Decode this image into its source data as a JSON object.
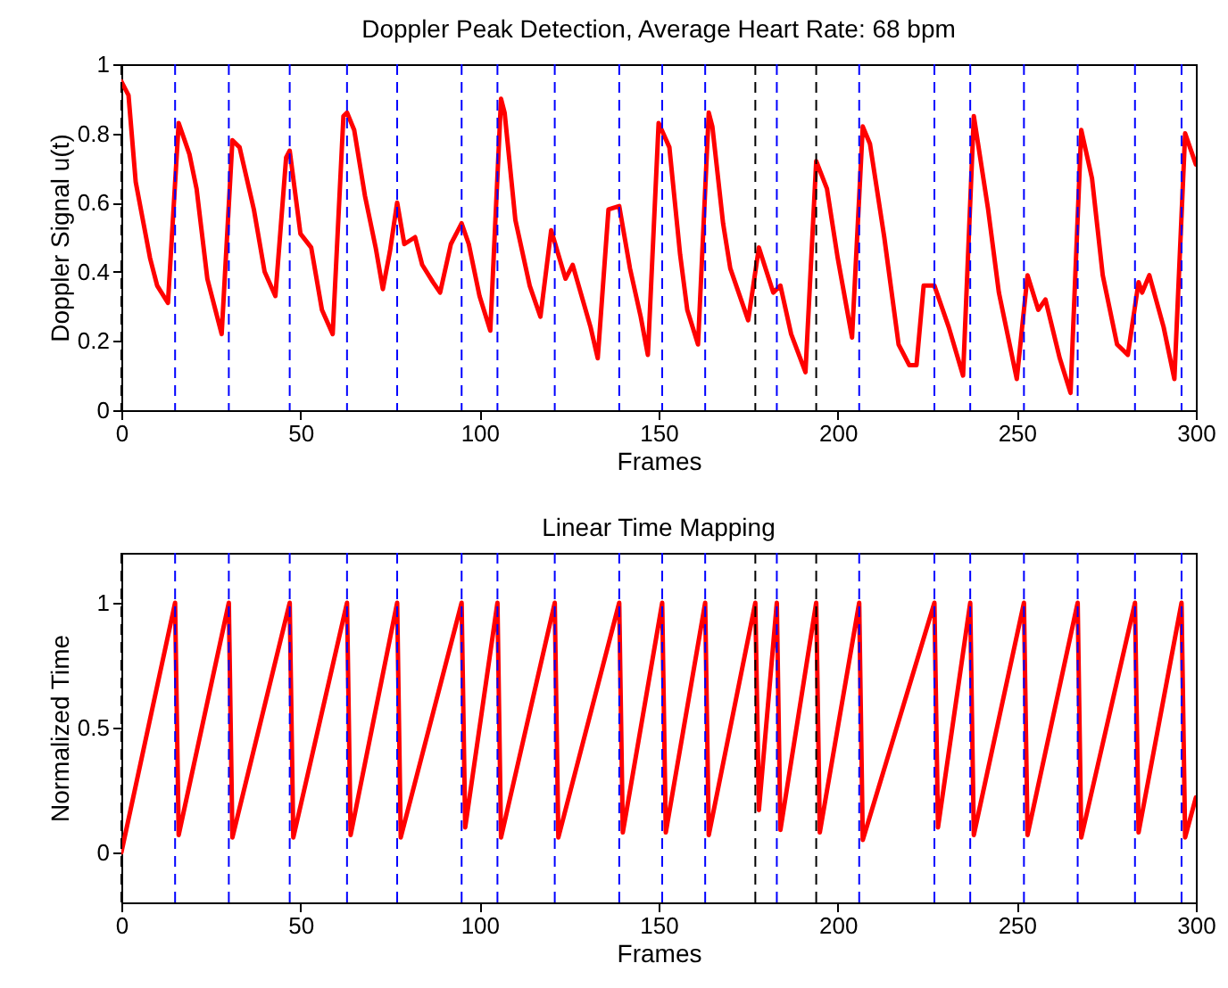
{
  "chart_data": [
    {
      "type": "line",
      "title": "Doppler Peak Detection, Average Heart Rate: 68 bpm",
      "xlabel": "Frames",
      "ylabel": "Doppler Signal u(t)",
      "color": "#ff0000",
      "x": [
        0,
        2,
        4,
        8,
        10,
        13,
        16,
        19,
        21,
        24,
        28,
        31,
        33,
        37,
        40,
        43,
        46,
        47,
        50,
        53,
        56,
        59,
        62,
        63,
        65,
        68,
        71,
        73,
        75,
        77,
        79,
        82,
        84,
        87,
        89,
        92,
        95,
        97,
        100,
        103,
        106,
        107,
        110,
        114,
        117,
        120,
        124,
        126,
        131,
        133,
        136,
        139,
        142,
        145,
        147,
        150,
        153,
        156,
        158,
        161,
        164,
        165,
        168,
        170,
        175,
        178,
        182,
        184,
        187,
        191,
        194,
        197,
        200,
        204,
        207,
        209,
        213,
        217,
        220,
        222,
        224,
        227,
        231,
        235,
        238,
        242,
        245,
        250,
        253,
        256,
        258,
        262,
        265,
        268,
        271,
        274,
        278,
        281,
        284,
        285,
        287,
        291,
        294,
        297,
        300
      ],
      "values": [
        0.95,
        0.91,
        0.66,
        0.44,
        0.36,
        0.31,
        0.83,
        0.74,
        0.64,
        0.38,
        0.22,
        0.78,
        0.76,
        0.58,
        0.4,
        0.33,
        0.73,
        0.75,
        0.51,
        0.47,
        0.29,
        0.22,
        0.85,
        0.86,
        0.81,
        0.62,
        0.47,
        0.35,
        0.46,
        0.6,
        0.48,
        0.5,
        0.42,
        0.37,
        0.34,
        0.48,
        0.54,
        0.48,
        0.33,
        0.23,
        0.9,
        0.86,
        0.55,
        0.36,
        0.27,
        0.52,
        0.38,
        0.42,
        0.24,
        0.15,
        0.58,
        0.59,
        0.41,
        0.27,
        0.16,
        0.83,
        0.76,
        0.45,
        0.29,
        0.19,
        0.86,
        0.82,
        0.54,
        0.41,
        0.26,
        0.47,
        0.34,
        0.36,
        0.22,
        0.11,
        0.72,
        0.64,
        0.44,
        0.21,
        0.82,
        0.77,
        0.5,
        0.19,
        0.13,
        0.13,
        0.36,
        0.36,
        0.24,
        0.1,
        0.85,
        0.58,
        0.34,
        0.09,
        0.39,
        0.29,
        0.32,
        0.15,
        0.05,
        0.81,
        0.67,
        0.39,
        0.19,
        0.16,
        0.37,
        0.34,
        0.39,
        0.24,
        0.09,
        0.8,
        0.71
      ],
      "xlim": [
        0,
        300
      ],
      "xticks": [
        0,
        50,
        100,
        150,
        200,
        250,
        300
      ],
      "ylim": [
        0,
        1
      ],
      "yticks": [
        0,
        0.2,
        0.4,
        0.6,
        0.8,
        1
      ],
      "ref_lines": [
        {
          "axis": "x",
          "value": 0,
          "color": "#000000",
          "line_style": "dashed"
        },
        {
          "axis": "x",
          "value": 15,
          "color": "#0000ff",
          "line_style": "dashed"
        },
        {
          "axis": "x",
          "value": 30,
          "color": "#0000ff",
          "line_style": "dashed"
        },
        {
          "axis": "x",
          "value": 47,
          "color": "#0000ff",
          "line_style": "dashed"
        },
        {
          "axis": "x",
          "value": 63,
          "color": "#0000ff",
          "line_style": "dashed"
        },
        {
          "axis": "x",
          "value": 77,
          "color": "#0000ff",
          "line_style": "dashed"
        },
        {
          "axis": "x",
          "value": 95,
          "color": "#0000ff",
          "line_style": "dashed"
        },
        {
          "axis": "x",
          "value": 105,
          "color": "#0000ff",
          "line_style": "dashed"
        },
        {
          "axis": "x",
          "value": 121,
          "color": "#0000ff",
          "line_style": "dashed"
        },
        {
          "axis": "x",
          "value": 139,
          "color": "#0000ff",
          "line_style": "dashed"
        },
        {
          "axis": "x",
          "value": 151,
          "color": "#0000ff",
          "line_style": "dashed"
        },
        {
          "axis": "x",
          "value": 163,
          "color": "#0000ff",
          "line_style": "dashed"
        },
        {
          "axis": "x",
          "value": 177,
          "color": "#000000",
          "line_style": "dashed"
        },
        {
          "axis": "x",
          "value": 183,
          "color": "#0000ff",
          "line_style": "dashed"
        },
        {
          "axis": "x",
          "value": 194,
          "color": "#000000",
          "line_style": "dashed"
        },
        {
          "axis": "x",
          "value": 206,
          "color": "#0000ff",
          "line_style": "dashed"
        },
        {
          "axis": "x",
          "value": 227,
          "color": "#0000ff",
          "line_style": "dashed"
        },
        {
          "axis": "x",
          "value": 237,
          "color": "#0000ff",
          "line_style": "dashed"
        },
        {
          "axis": "x",
          "value": 252,
          "color": "#0000ff",
          "line_style": "dashed"
        },
        {
          "axis": "x",
          "value": 267,
          "color": "#0000ff",
          "line_style": "dashed"
        },
        {
          "axis": "x",
          "value": 283,
          "color": "#0000ff",
          "line_style": "dashed"
        },
        {
          "axis": "x",
          "value": 296,
          "color": "#0000ff",
          "line_style": "dashed"
        }
      ]
    },
    {
      "type": "line",
      "title": "Linear Time Mapping",
      "xlabel": "Frames",
      "ylabel": "Normalized Time",
      "color": "#ff0000",
      "x": [
        0,
        15,
        16,
        30,
        31,
        47,
        48,
        63,
        64,
        77,
        78,
        95,
        96,
        105,
        106,
        121,
        122,
        139,
        140,
        151,
        152,
        163,
        164,
        177,
        178,
        183,
        184,
        194,
        195,
        206,
        207,
        227,
        228,
        237,
        238,
        252,
        253,
        267,
        268,
        283,
        284,
        296,
        297,
        300
      ],
      "values": [
        0,
        1,
        0.07,
        1,
        0.06,
        1,
        0.06,
        1,
        0.07,
        1,
        0.06,
        1,
        0.1,
        1,
        0.06,
        1,
        0.06,
        1,
        0.08,
        1,
        0.08,
        1,
        0.07,
        1,
        0.17,
        1,
        0.09,
        1,
        0.08,
        1,
        0.05,
        1,
        0.1,
        1,
        0.07,
        1,
        0.07,
        1,
        0.06,
        1,
        0.08,
        1,
        0.06,
        0.22
      ],
      "xlim": [
        0,
        300
      ],
      "xticks": [
        0,
        50,
        100,
        150,
        200,
        250,
        300
      ],
      "ylim": [
        -0.2,
        1.2
      ],
      "yticks": [
        0,
        0.5,
        1
      ],
      "ref_lines": [
        {
          "axis": "x",
          "value": 0,
          "color": "#000000",
          "line_style": "dashed"
        },
        {
          "axis": "x",
          "value": 15,
          "color": "#0000ff",
          "line_style": "dashed"
        },
        {
          "axis": "x",
          "value": 30,
          "color": "#0000ff",
          "line_style": "dashed"
        },
        {
          "axis": "x",
          "value": 47,
          "color": "#0000ff",
          "line_style": "dashed"
        },
        {
          "axis": "x",
          "value": 63,
          "color": "#0000ff",
          "line_style": "dashed"
        },
        {
          "axis": "x",
          "value": 77,
          "color": "#0000ff",
          "line_style": "dashed"
        },
        {
          "axis": "x",
          "value": 95,
          "color": "#0000ff",
          "line_style": "dashed"
        },
        {
          "axis": "x",
          "value": 105,
          "color": "#0000ff",
          "line_style": "dashed"
        },
        {
          "axis": "x",
          "value": 121,
          "color": "#0000ff",
          "line_style": "dashed"
        },
        {
          "axis": "x",
          "value": 139,
          "color": "#0000ff",
          "line_style": "dashed"
        },
        {
          "axis": "x",
          "value": 151,
          "color": "#0000ff",
          "line_style": "dashed"
        },
        {
          "axis": "x",
          "value": 163,
          "color": "#0000ff",
          "line_style": "dashed"
        },
        {
          "axis": "x",
          "value": 177,
          "color": "#000000",
          "line_style": "dashed"
        },
        {
          "axis": "x",
          "value": 183,
          "color": "#0000ff",
          "line_style": "dashed"
        },
        {
          "axis": "x",
          "value": 194,
          "color": "#000000",
          "line_style": "dashed"
        },
        {
          "axis": "x",
          "value": 206,
          "color": "#0000ff",
          "line_style": "dashed"
        },
        {
          "axis": "x",
          "value": 227,
          "color": "#0000ff",
          "line_style": "dashed"
        },
        {
          "axis": "x",
          "value": 237,
          "color": "#0000ff",
          "line_style": "dashed"
        },
        {
          "axis": "x",
          "value": 252,
          "color": "#0000ff",
          "line_style": "dashed"
        },
        {
          "axis": "x",
          "value": 267,
          "color": "#0000ff",
          "line_style": "dashed"
        },
        {
          "axis": "x",
          "value": 283,
          "color": "#0000ff",
          "line_style": "dashed"
        },
        {
          "axis": "x",
          "value": 296,
          "color": "#0000ff",
          "line_style": "dashed"
        }
      ]
    }
  ]
}
